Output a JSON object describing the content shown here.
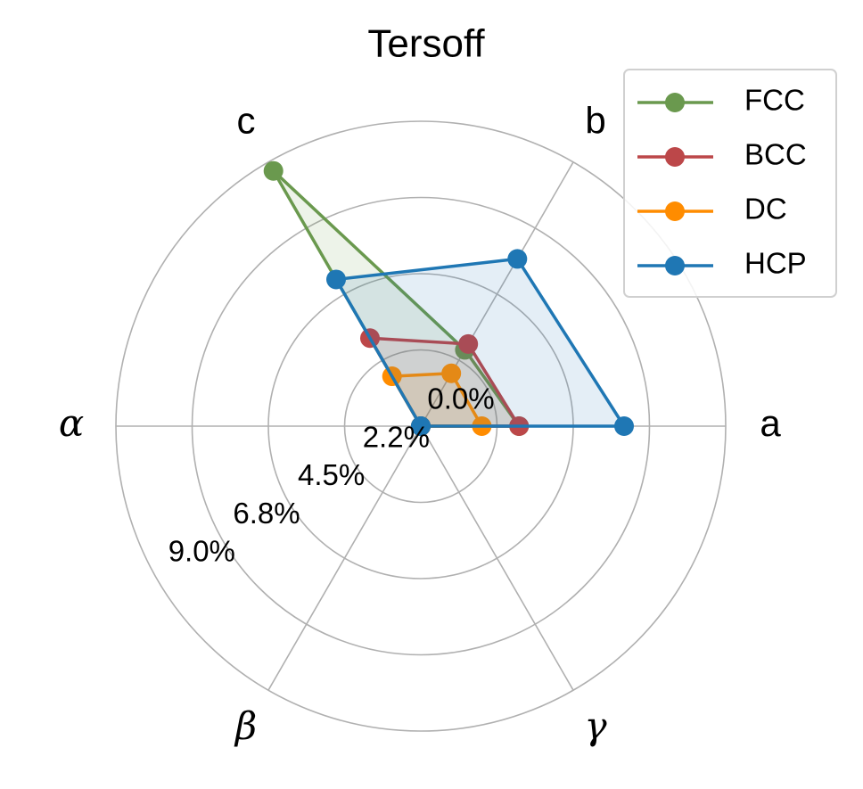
{
  "chart_data": {
    "type": "radar",
    "title": "Tersoff",
    "categories": [
      "a",
      "b",
      "c",
      "α",
      "β",
      "γ"
    ],
    "rlim": [
      0,
      9.0
    ],
    "rticks": [
      {
        "value": 0,
        "label": "0.0%"
      },
      {
        "value": 2.25,
        "label": "2.2%"
      },
      {
        "value": 4.5,
        "label": "4.5%"
      },
      {
        "value": 6.75,
        "label": "6.8%"
      },
      {
        "value": 9.0,
        "label": "9.0%"
      }
    ],
    "grid": true,
    "legend": "upper right",
    "series": [
      {
        "name": "FCC",
        "color": "#6a994e",
        "values": [
          2.9,
          2.6,
          8.7,
          0,
          0,
          0
        ]
      },
      {
        "name": "BCC",
        "color": "#bc4749",
        "values": [
          2.9,
          2.8,
          3.0,
          0,
          0,
          0
        ]
      },
      {
        "name": "DC",
        "color": "#ff8c00",
        "values": [
          1.8,
          1.8,
          1.7,
          0,
          0,
          0
        ]
      },
      {
        "name": "HCP",
        "color": "#1f77b4",
        "values": [
          6.0,
          5.7,
          5.0,
          0,
          0,
          0
        ]
      }
    ]
  }
}
